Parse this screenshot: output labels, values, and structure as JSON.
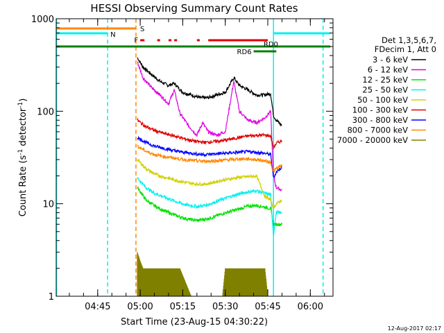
{
  "chart_data": {
    "type": "line",
    "title": "HESSI Observing Summary Count Rates",
    "xlabel": "Start Time (23-Aug-15 04:30:22)",
    "ylabel": "Count Rate (s",
    "ylabel_sup": "-1",
    "ylabel_tail": " detector",
    "ylabel_end": ")",
    "yscale": "log",
    "ylim": [
      1,
      1000
    ],
    "xlim": [
      "04:30:22",
      "06:08:00"
    ],
    "y_ticks": [
      {
        "value": 1,
        "label": "1"
      },
      {
        "value": 10,
        "label": "10"
      },
      {
        "value": 100,
        "label": "100"
      },
      {
        "value": 1000,
        "label": "1000"
      }
    ],
    "x_ticks": [
      {
        "value": "04:45",
        "label": "04:45"
      },
      {
        "value": "05:00",
        "label": "05:00"
      },
      {
        "value": "05:15",
        "label": "05:15"
      },
      {
        "value": "05:30",
        "label": "05:30"
      },
      {
        "value": "05:45",
        "label": "05:45"
      },
      {
        "value": "06:00",
        "label": "06:00"
      }
    ],
    "legend": {
      "placement": "right",
      "header": [
        "Det 1,3,5,6,7,",
        "FDecim 1, Att 0"
      ],
      "entries": [
        {
          "label": "3 - 6 keV",
          "color": "#000000"
        },
        {
          "label": "6 - 12 keV",
          "color": "#e000e0"
        },
        {
          "label": "12 - 25 keV",
          "color": "#00e000"
        },
        {
          "label": "25 - 50 keV",
          "color": "#00f0f0"
        },
        {
          "label": "50 - 100 keV",
          "color": "#d0d000"
        },
        {
          "label": "100 - 300 keV",
          "color": "#e00000"
        },
        {
          "label": "300 - 800 keV",
          "color": "#0000ff"
        },
        {
          "label": "800 - 7000 keV",
          "color": "#ff8800"
        },
        {
          "label": "7000 - 20000 keV",
          "color": "#808000"
        }
      ]
    },
    "series": [
      {
        "name": "3 - 6 keV",
        "color": "#000000",
        "x": [
          "04:59:00",
          "05:01:00",
          "05:04:00",
          "05:07:00",
          "05:10:00",
          "05:12:00",
          "05:15:00",
          "05:18:00",
          "05:21:00",
          "05:24:00",
          "05:27:00",
          "05:30:00",
          "05:33:00",
          "05:35:00",
          "05:38:00",
          "05:41:00",
          "05:44:00",
          "05:46:00",
          "05:47:00",
          "05:48:00",
          "05:50:00"
        ],
        "y": [
          380,
          300,
          250,
          210,
          190,
          200,
          160,
          150,
          140,
          140,
          150,
          160,
          230,
          190,
          170,
          150,
          150,
          155,
          90,
          80,
          70
        ]
      },
      {
        "name": "6 - 12 keV",
        "color": "#e000e0",
        "x": [
          "04:59:00",
          "05:01:00",
          "05:04:00",
          "05:07:00",
          "05:10:00",
          "05:12:00",
          "05:14:00",
          "05:17:00",
          "05:20:00",
          "05:22:00",
          "05:24:00",
          "05:27:00",
          "05:30:00",
          "05:33:00",
          "05:35:00",
          "05:38:00",
          "05:41:00",
          "05:44:00",
          "05:46:00",
          "05:47:00",
          "05:48:00",
          "05:50:00"
        ],
        "y": [
          340,
          230,
          180,
          150,
          120,
          170,
          95,
          70,
          55,
          75,
          60,
          55,
          60,
          210,
          100,
          80,
          75,
          85,
          100,
          20,
          15,
          14
        ]
      },
      {
        "name": "12 - 25 keV",
        "color": "#00e000",
        "x": [
          "04:59:00",
          "05:02:00",
          "05:05:00",
          "05:08:00",
          "05:11:00",
          "05:14:00",
          "05:17:00",
          "05:20:00",
          "05:23:00",
          "05:26:00",
          "05:29:00",
          "05:32:00",
          "05:35:00",
          "05:38:00",
          "05:41:00",
          "05:44:00",
          "05:46:00",
          "05:47:00",
          "05:48:00",
          "05:50:00"
        ],
        "y": [
          15,
          11,
          9.5,
          8.5,
          7.8,
          7.2,
          6.8,
          6.6,
          6.8,
          7.2,
          7.8,
          8.3,
          8.8,
          9.4,
          9.6,
          9.2,
          8.8,
          6,
          6,
          6
        ]
      },
      {
        "name": "25 - 50 keV",
        "color": "#00f0f0",
        "x": [
          "04:59:00",
          "05:02:00",
          "05:05:00",
          "05:08:00",
          "05:11:00",
          "05:14:00",
          "05:17:00",
          "05:20:00",
          "05:23:00",
          "05:26:00",
          "05:29:00",
          "05:32:00",
          "05:35:00",
          "05:38:00",
          "05:41:00",
          "05:44:00",
          "05:46:00",
          "05:47:00",
          "05:48:00",
          "05:50:00"
        ],
        "y": [
          19,
          15,
          13,
          12,
          11,
          10.2,
          9.6,
          9.3,
          9.6,
          10.3,
          11.2,
          12,
          12.8,
          13.4,
          13.8,
          13,
          12.5,
          4.5,
          8,
          8
        ]
      },
      {
        "name": "50 - 100 keV",
        "color": "#d0d000",
        "x": [
          "04:59:00",
          "05:02:00",
          "05:05:00",
          "05:08:00",
          "05:11:00",
          "05:14:00",
          "05:17:00",
          "05:20:00",
          "05:23:00",
          "05:26:00",
          "05:29:00",
          "05:32:00",
          "05:35:00",
          "05:38:00",
          "05:41:00",
          "05:44:00",
          "05:46:00",
          "05:47:00",
          "05:48:00",
          "05:50:00"
        ],
        "y": [
          30,
          24,
          21,
          19.5,
          18.5,
          17.5,
          16.8,
          16.3,
          16.3,
          17,
          18,
          18.6,
          19.3,
          19.6,
          20,
          12,
          11,
          9,
          10,
          11
        ]
      },
      {
        "name": "100 - 300 keV",
        "color": "#e00000",
        "x": [
          "04:59:00",
          "05:02:00",
          "05:05:00",
          "05:08:00",
          "05:11:00",
          "05:14:00",
          "05:17:00",
          "05:20:00",
          "05:23:00",
          "05:26:00",
          "05:29:00",
          "05:32:00",
          "05:35:00",
          "05:38:00",
          "05:41:00",
          "05:44:00",
          "05:46:00",
          "05:47:00",
          "05:48:00",
          "05:50:00"
        ],
        "y": [
          80,
          68,
          62,
          58,
          55,
          52,
          49,
          47,
          46,
          47,
          48,
          50,
          52,
          54,
          55,
          55,
          54,
          40,
          45,
          48
        ]
      },
      {
        "name": "300 - 800 keV",
        "color": "#0000ff",
        "x": [
          "04:59:00",
          "05:02:00",
          "05:05:00",
          "05:08:00",
          "05:11:00",
          "05:14:00",
          "05:17:00",
          "05:20:00",
          "05:23:00",
          "05:26:00",
          "05:29:00",
          "05:32:00",
          "05:35:00",
          "05:38:00",
          "05:41:00",
          "05:44:00",
          "05:46:00",
          "05:47:00",
          "05:48:00",
          "05:50:00"
        ],
        "y": [
          52,
          46,
          42,
          40,
          38,
          36.5,
          35.5,
          34.5,
          34,
          34.5,
          35,
          35.5,
          36,
          36.5,
          36,
          35,
          34,
          19,
          22,
          25
        ]
      },
      {
        "name": "800 - 7000 keV",
        "color": "#ff8800",
        "x": [
          "04:59:00",
          "05:02:00",
          "05:05:00",
          "05:08:00",
          "05:11:00",
          "05:14:00",
          "05:17:00",
          "05:20:00",
          "05:23:00",
          "05:26:00",
          "05:29:00",
          "05:32:00",
          "05:35:00",
          "05:38:00",
          "05:41:00",
          "05:44:00",
          "05:46:00",
          "05:47:00",
          "05:48:00",
          "05:50:00"
        ],
        "y": [
          42,
          37,
          34,
          32.5,
          31.5,
          30.5,
          29.5,
          29,
          28.8,
          29,
          29.5,
          30,
          30.5,
          30.5,
          30,
          29,
          28,
          22,
          24,
          26
        ]
      },
      {
        "name": "7000 - 20000 keV",
        "color": "#808000",
        "x": [
          "04:59:00",
          "05:00:00",
          "05:01:00",
          "05:02:00",
          "05:04:00",
          "05:06:00",
          "05:10:00",
          "05:14:00",
          "05:18:00",
          "05:22:00",
          "05:26:00",
          "05:29:00",
          "05:30:00",
          "05:33:00",
          "05:36:00",
          "05:39:00",
          "05:42:00",
          "05:44:00",
          "05:45:00"
        ],
        "y": [
          3,
          2.4,
          2,
          2,
          2,
          2,
          2,
          2,
          1,
          1,
          1,
          1,
          2,
          2,
          2,
          2,
          2,
          2,
          1
        ]
      }
    ],
    "vertical_lines": [
      {
        "x": "04:30:30",
        "color": "#00f0f0",
        "style": "solid"
      },
      {
        "x": "04:48:30",
        "color": "#00f0f0",
        "style": "dashed"
      },
      {
        "x": "04:58:30",
        "color": "#ff8800",
        "style": "dashed"
      },
      {
        "x": "05:47:00",
        "color": "#00f0f0",
        "style": "solid"
      },
      {
        "x": "06:04:30",
        "color": "#00f0f0",
        "style": "dashed"
      }
    ],
    "flags": [
      {
        "label": "S",
        "color": "#ff8800",
        "segments": [
          [
            "04:30:22",
            "04:58:30"
          ]
        ]
      },
      {
        "label": "N",
        "color": "#00f0f0",
        "segments": [
          [
            "04:30:22",
            "04:48:30"
          ],
          [
            "05:47:00",
            "06:07:00"
          ]
        ]
      },
      {
        "label": "F",
        "color": "#e00000",
        "segments": [
          [
            "05:00:00",
            "05:01:30"
          ],
          [
            "05:06:00",
            "05:07:00"
          ],
          [
            "05:10:00",
            "05:11:00"
          ],
          [
            "05:12:00",
            "05:13:00"
          ],
          [
            "05:20:00",
            "05:21:00"
          ],
          [
            "05:24:00",
            "05:45:00"
          ]
        ]
      },
      {
        "label": "RD0",
        "color": "#008000",
        "segments": [
          [
            "04:30:22",
            "06:07:00"
          ]
        ]
      },
      {
        "label": "RD6",
        "color": "#008000",
        "segments": [
          [
            "05:40:00",
            "05:48:00"
          ]
        ]
      }
    ]
  },
  "timestamp": "12-Aug-2017 02:17"
}
